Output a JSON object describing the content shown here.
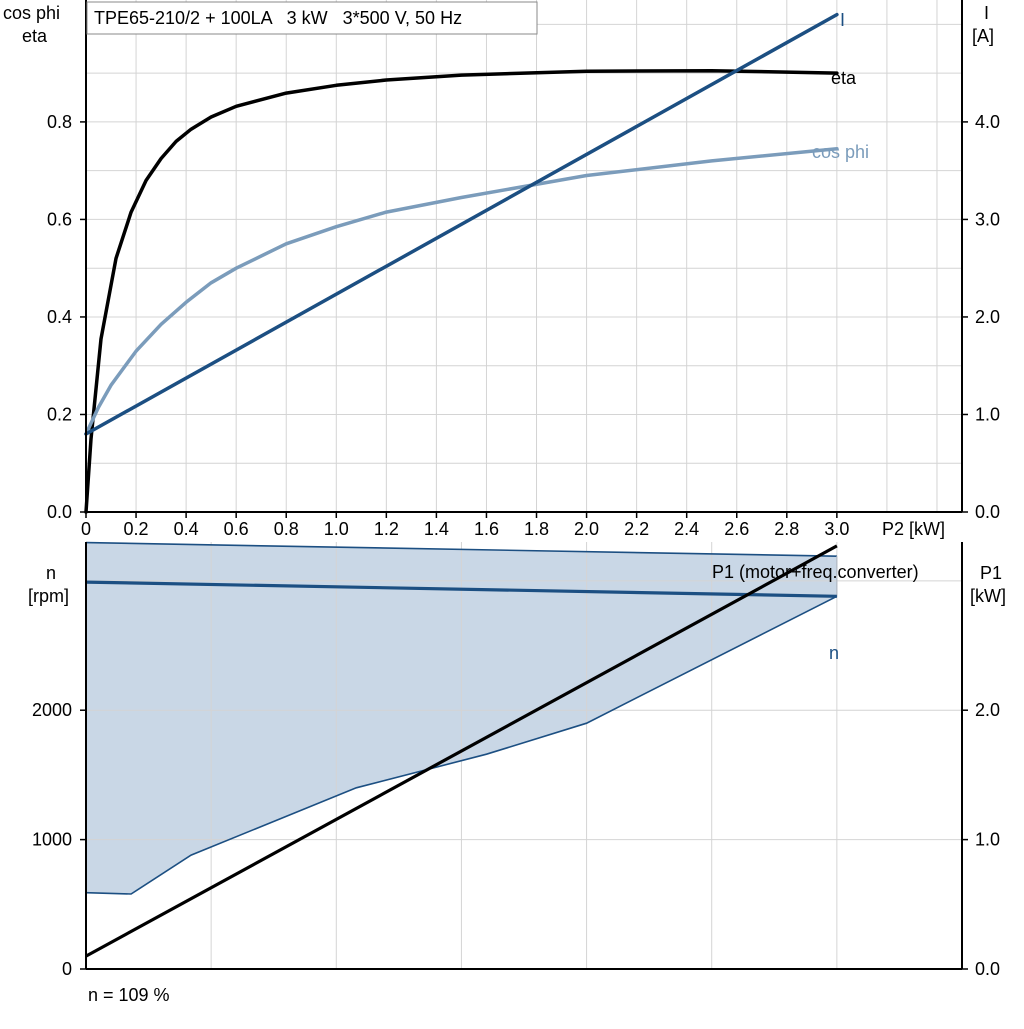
{
  "chart_data": [
    {
      "type": "line",
      "title": "TPE65-210/2 + 100LA   3 kW   3*500 V, 50 Hz",
      "xlabel": "P2 [kW]",
      "ylabel_left": [
        "cos phi",
        "eta"
      ],
      "ylabel_right": [
        "I",
        "[A]"
      ],
      "xlim": [
        0,
        3.5
      ],
      "ylim_left": [
        0,
        1.05
      ],
      "ylim_right": [
        0,
        5.25
      ],
      "grid": true,
      "x_ticks": [
        "0",
        "0.2",
        "0.4",
        "0.6",
        "0.8",
        "1.0",
        "1.2",
        "1.4",
        "1.6",
        "1.8",
        "2.0",
        "2.2",
        "2.4",
        "2.6",
        "2.8",
        "3.0"
      ],
      "y_ticks_left": [
        "0.0",
        "0.2",
        "0.4",
        "0.6",
        "0.8"
      ],
      "y_ticks_right": [
        "0.0",
        "1.0",
        "2.0",
        "3.0",
        "4.0"
      ],
      "series": [
        {
          "name": "eta",
          "axis": "left",
          "color": "#000000",
          "x": [
            0,
            0.02,
            0.06,
            0.12,
            0.18,
            0.24,
            0.3,
            0.36,
            0.42,
            0.5,
            0.6,
            0.8,
            1.0,
            1.2,
            1.5,
            2.0,
            2.5,
            3.0
          ],
          "y": [
            0.0,
            0.15,
            0.355,
            0.52,
            0.615,
            0.68,
            0.725,
            0.76,
            0.785,
            0.81,
            0.832,
            0.859,
            0.875,
            0.886,
            0.896,
            0.904,
            0.905,
            0.9
          ]
        },
        {
          "name": "cos phi",
          "axis": "left",
          "color": "#7b9cbb",
          "x": [
            0,
            0.05,
            0.1,
            0.2,
            0.3,
            0.4,
            0.5,
            0.6,
            0.8,
            1.0,
            1.2,
            1.5,
            2.0,
            2.5,
            3.0
          ],
          "y": [
            0.16,
            0.215,
            0.26,
            0.33,
            0.385,
            0.43,
            0.47,
            0.5,
            0.55,
            0.585,
            0.615,
            0.645,
            0.69,
            0.72,
            0.745
          ]
        },
        {
          "name": "I",
          "axis": "right",
          "color": "#1c4f82",
          "x": [
            0,
            3.0
          ],
          "y": [
            0.8,
            5.1
          ]
        }
      ]
    },
    {
      "type": "area",
      "xlabel": "",
      "ylabel_left": [
        "n",
        "[rpm]"
      ],
      "ylabel_right": [
        "P1",
        "[kW]"
      ],
      "xlim": [
        0,
        3.5
      ],
      "ylim_left": [
        0,
        3300
      ],
      "ylim_right": [
        0,
        3.3
      ],
      "grid": true,
      "y_ticks_left": [
        "0",
        "1000",
        "2000"
      ],
      "y_ticks_right": [
        "0.0",
        "1.0",
        "2.0"
      ],
      "footnote": "n = 109 %",
      "operating_range": {
        "color": "#c9d7e6",
        "upper_x": [
          0,
          3.0
        ],
        "upper_y": [
          3295,
          3190
        ],
        "lower_x": [
          0,
          0.18,
          0.42,
          1.08,
          1.6,
          2.0,
          3.0
        ],
        "lower_y": [
          590,
          580,
          880,
          1400,
          1660,
          1900,
          2880
        ]
      },
      "series": [
        {
          "name": "n",
          "axis": "left",
          "color": "#1c4f82",
          "x": [
            0,
            3.0
          ],
          "y": [
            2990,
            2880
          ]
        },
        {
          "name": "P1 (motor+freq.converter)",
          "axis": "right",
          "color": "#000000",
          "x": [
            0,
            3.0
          ],
          "y": [
            0.1,
            3.27
          ]
        }
      ]
    }
  ]
}
